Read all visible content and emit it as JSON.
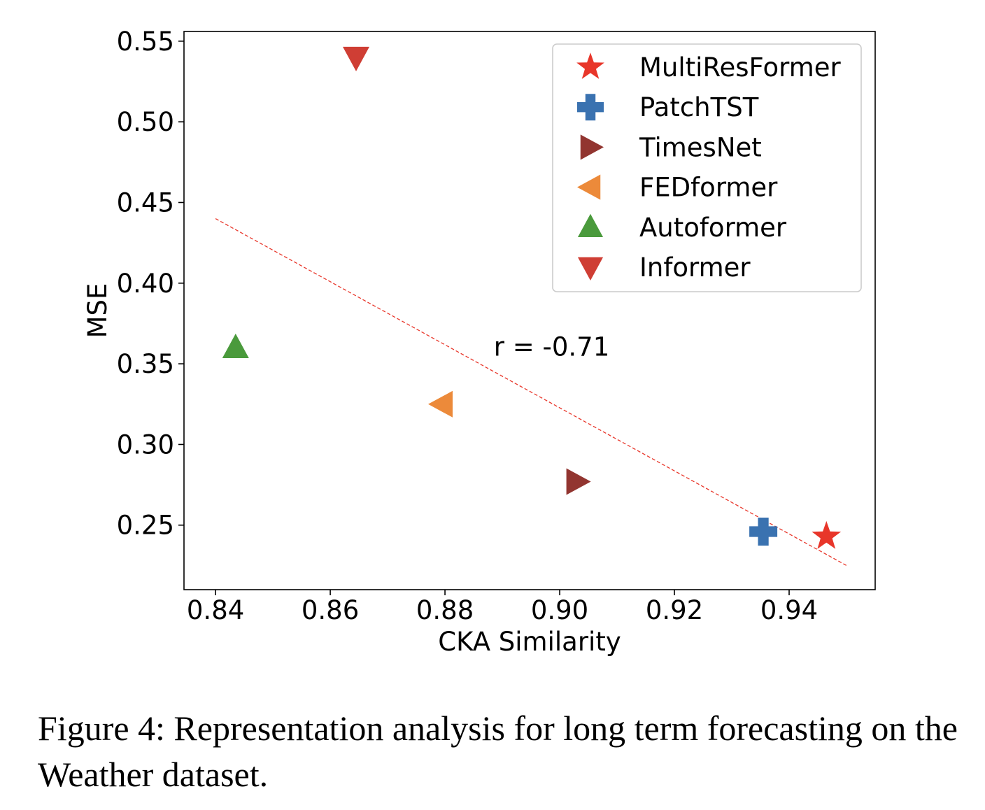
{
  "chart_data": {
    "type": "scatter",
    "xlabel": "CKA Similarity",
    "ylabel": "MSE",
    "xlim": [
      0.8345,
      0.955
    ],
    "ylim": [
      0.21,
      0.556
    ],
    "xticks": [
      0.84,
      0.86,
      0.88,
      0.9,
      0.92,
      0.94
    ],
    "xtick_labels": [
      "0.84",
      "0.86",
      "0.88",
      "0.90",
      "0.92",
      "0.94"
    ],
    "yticks": [
      0.25,
      0.3,
      0.35,
      0.4,
      0.45,
      0.5,
      0.55
    ],
    "ytick_labels": [
      "0.25",
      "0.30",
      "0.35",
      "0.40",
      "0.45",
      "0.50",
      "0.55"
    ],
    "series": [
      {
        "name": "MultiResFormer",
        "x": 0.9465,
        "y": 0.243,
        "marker": "star",
        "color": "#e8362a"
      },
      {
        "name": "PatchTST",
        "x": 0.9355,
        "y": 0.246,
        "marker": "plus",
        "color": "#3a72b0"
      },
      {
        "name": "TimesNet",
        "x": 0.903,
        "y": 0.277,
        "marker": "triangle-right",
        "color": "#923530"
      },
      {
        "name": "FEDformer",
        "x": 0.8795,
        "y": 0.325,
        "marker": "triangle-left",
        "color": "#ec8a3a"
      },
      {
        "name": "Autoformer",
        "x": 0.8435,
        "y": 0.36,
        "marker": "triangle-up",
        "color": "#4a9a3c"
      },
      {
        "name": "Informer",
        "x": 0.8645,
        "y": 0.54,
        "marker": "triangle-down",
        "color": "#cf3e34"
      }
    ],
    "trendline": {
      "x": [
        0.84,
        0.95
      ],
      "y": [
        0.44,
        0.225
      ],
      "color": "#e8362a",
      "style": "dashed"
    },
    "annotation": {
      "text": "r = -0.71",
      "x": 0.8885,
      "y": 0.355
    },
    "legend": {
      "position": "top-right"
    }
  },
  "caption": {
    "text": "Figure 4: Representation analysis for long term forecasting on the Weather dataset."
  }
}
